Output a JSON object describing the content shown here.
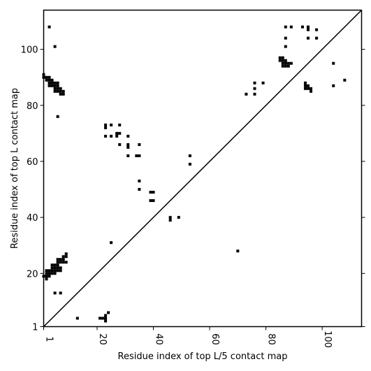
{
  "chart_data": {
    "type": "scatter",
    "title": "",
    "xlabel": "Residue index of top L/5 contact map",
    "ylabel": "Residue index of top L contact map",
    "xlim": [
      1,
      114
    ],
    "ylim": [
      1,
      114
    ],
    "xticks": [
      1,
      20,
      40,
      60,
      80,
      100
    ],
    "yticks": [
      1,
      20,
      40,
      60,
      80,
      100
    ],
    "grid": false,
    "diagonal": true,
    "marker": "square",
    "color": "#000000",
    "upper_points": [
      [
        3,
        108
      ],
      [
        5,
        101
      ],
      [
        6,
        76
      ],
      [
        1,
        90
      ],
      [
        2,
        90
      ],
      [
        3,
        90
      ],
      [
        1,
        91
      ],
      [
        2,
        89
      ],
      [
        3,
        89
      ],
      [
        4,
        89
      ],
      [
        3,
        88
      ],
      [
        4,
        88
      ],
      [
        5,
        88
      ],
      [
        6,
        88
      ],
      [
        3,
        87
      ],
      [
        4,
        87
      ],
      [
        5,
        87
      ],
      [
        6,
        87
      ],
      [
        5,
        86
      ],
      [
        6,
        86
      ],
      [
        7,
        86
      ],
      [
        5,
        85
      ],
      [
        6,
        85
      ],
      [
        7,
        85
      ],
      [
        8,
        85
      ],
      [
        7,
        84
      ],
      [
        8,
        84
      ],
      [
        23,
        73
      ],
      [
        25,
        73
      ],
      [
        28,
        73
      ],
      [
        23,
        72
      ],
      [
        27,
        70
      ],
      [
        28,
        70
      ],
      [
        27,
        69
      ],
      [
        23,
        69
      ],
      [
        25,
        69
      ],
      [
        31,
        69
      ],
      [
        28,
        66
      ],
      [
        31,
        66
      ],
      [
        35,
        66
      ],
      [
        31,
        65
      ],
      [
        31,
        62
      ],
      [
        34,
        62
      ],
      [
        35,
        62
      ],
      [
        53,
        62
      ],
      [
        53,
        59
      ],
      [
        35,
        53
      ],
      [
        35,
        50
      ],
      [
        39,
        49
      ],
      [
        40,
        49
      ],
      [
        39,
        46
      ],
      [
        40,
        46
      ],
      [
        46,
        40
      ],
      [
        49,
        40
      ],
      [
        46,
        39
      ],
      [
        25,
        31
      ],
      [
        73,
        84
      ],
      [
        76,
        84
      ],
      [
        76,
        86
      ],
      [
        76,
        88
      ],
      [
        79,
        88
      ],
      [
        87,
        108
      ],
      [
        89,
        108
      ],
      [
        93,
        108
      ],
      [
        95,
        108
      ],
      [
        95,
        107
      ],
      [
        98,
        107
      ],
      [
        87,
        104
      ],
      [
        95,
        104
      ],
      [
        98,
        104
      ],
      [
        87,
        101
      ],
      [
        85,
        97
      ],
      [
        86,
        97
      ],
      [
        85,
        96
      ],
      [
        86,
        96
      ],
      [
        87,
        96
      ],
      [
        86,
        95
      ],
      [
        87,
        95
      ],
      [
        88,
        95
      ],
      [
        89,
        95
      ],
      [
        86,
        94
      ],
      [
        87,
        94
      ],
      [
        88,
        94
      ],
      [
        94,
        88
      ],
      [
        94,
        87
      ],
      [
        95,
        87
      ],
      [
        94,
        86
      ],
      [
        95,
        86
      ],
      [
        96,
        86
      ],
      [
        96,
        85
      ],
      [
        104,
        95
      ],
      [
        108,
        89
      ],
      [
        104,
        87
      ]
    ],
    "lower_points": [
      [
        2,
        21
      ],
      [
        3,
        21
      ],
      [
        2,
        20
      ],
      [
        3,
        20
      ],
      [
        4,
        20
      ],
      [
        5,
        20
      ],
      [
        1,
        19
      ],
      [
        2,
        19
      ],
      [
        3,
        19
      ],
      [
        2,
        18
      ],
      [
        4,
        23
      ],
      [
        5,
        23
      ],
      [
        6,
        23
      ],
      [
        4,
        22
      ],
      [
        5,
        22
      ],
      [
        6,
        22
      ],
      [
        7,
        22
      ],
      [
        5,
        21
      ],
      [
        6,
        21
      ],
      [
        7,
        21
      ],
      [
        4,
        21
      ],
      [
        6,
        25
      ],
      [
        7,
        25
      ],
      [
        6,
        24
      ],
      [
        7,
        24
      ],
      [
        8,
        24
      ],
      [
        9,
        24
      ],
      [
        8,
        26
      ],
      [
        9,
        26
      ],
      [
        9,
        27
      ],
      [
        8,
        25
      ],
      [
        5,
        13
      ],
      [
        7,
        13
      ],
      [
        13,
        4
      ],
      [
        21,
        4
      ],
      [
        22,
        4
      ],
      [
        23,
        4
      ],
      [
        23,
        5
      ],
      [
        24,
        6
      ],
      [
        23,
        3
      ],
      [
        70,
        28
      ]
    ]
  }
}
